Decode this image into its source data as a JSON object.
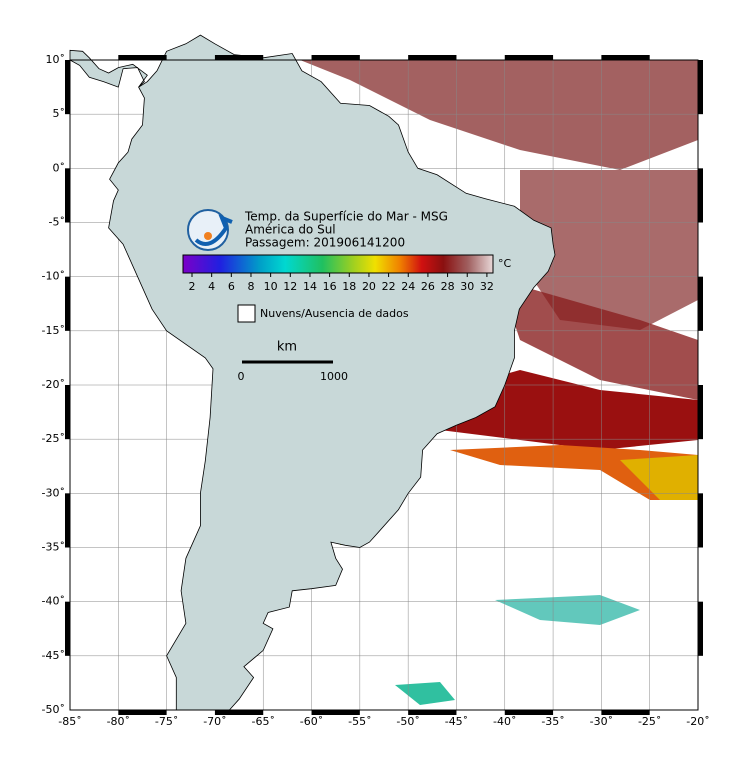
{
  "header": {
    "title_lines": [
      "Temp. da Superfície do Mar - MSG",
      "América do Sul",
      "Passagem: 201906141200"
    ]
  },
  "colorbar": {
    "ticks": [
      2,
      4,
      6,
      8,
      10,
      12,
      14,
      16,
      18,
      20,
      22,
      24,
      26,
      28,
      30,
      32
    ],
    "unit": "°C"
  },
  "legend": {
    "label": "Nuvens/Ausencia de dados"
  },
  "scale_bar": {
    "unit": "km",
    "start": "0",
    "end": "1000"
  },
  "axes": {
    "lat_labels": [
      "10˚",
      "5˚",
      "0˚",
      "-5˚",
      "-10˚",
      "-15˚",
      "-20˚",
      "-25˚",
      "-30˚",
      "-35˚",
      "-40˚",
      "-45˚",
      "-50˚"
    ],
    "lon_labels": [
      "-85˚",
      "-80˚",
      "-75˚",
      "-70˚",
      "-65˚",
      "-60˚",
      "-55˚",
      "-50˚",
      "-45˚",
      "-40˚",
      "-35˚",
      "-30˚",
      "-25˚",
      "-20˚"
    ]
  }
}
